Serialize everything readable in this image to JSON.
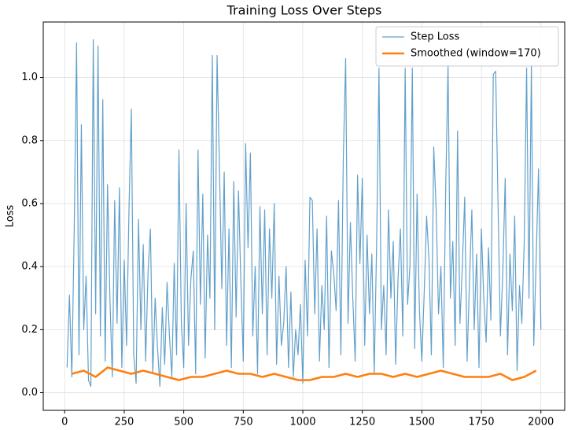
{
  "chart_data": {
    "type": "line",
    "title": "Training Loss Over Steps",
    "ylabel": "Loss",
    "xlim": [
      -90,
      2100
    ],
    "ylim": [
      -0.056,
      1.176
    ],
    "xticks": [
      0,
      250,
      500,
      750,
      1000,
      1250,
      1500,
      1750,
      2000
    ],
    "yticks": [
      {
        "value": 0,
        "label": "0.0"
      },
      0.2,
      0.4,
      0.6,
      0.8,
      {
        "value": 1,
        "label": "1.0"
      }
    ],
    "grid": true,
    "legend": "upper right",
    "series": [
      {
        "name": "Step Loss",
        "color": "#1f77b4",
        "x": [
          10,
          20,
          30,
          40,
          50,
          60,
          70,
          80,
          90,
          100,
          110,
          120,
          130,
          140,
          150,
          160,
          170,
          180,
          190,
          200,
          210,
          220,
          230,
          240,
          250,
          260,
          270,
          280,
          290,
          300,
          310,
          320,
          330,
          340,
          350,
          360,
          370,
          380,
          390,
          400,
          410,
          420,
          430,
          440,
          450,
          460,
          470,
          480,
          490,
          500,
          510,
          520,
          530,
          540,
          550,
          560,
          570,
          580,
          590,
          600,
          610,
          620,
          630,
          640,
          650,
          660,
          670,
          680,
          690,
          700,
          710,
          720,
          730,
          740,
          750,
          760,
          770,
          780,
          790,
          800,
          810,
          820,
          830,
          840,
          850,
          860,
          870,
          880,
          890,
          900,
          910,
          920,
          930,
          940,
          950,
          960,
          970,
          980,
          990,
          1000,
          1010,
          1020,
          1030,
          1040,
          1050,
          1060,
          1070,
          1080,
          1090,
          1100,
          1110,
          1120,
          1130,
          1140,
          1150,
          1160,
          1170,
          1180,
          1190,
          1200,
          1210,
          1220,
          1230,
          1240,
          1250,
          1260,
          1270,
          1280,
          1290,
          1300,
          1310,
          1320,
          1330,
          1340,
          1350,
          1360,
          1370,
          1380,
          1390,
          1400,
          1410,
          1420,
          1430,
          1440,
          1450,
          1460,
          1470,
          1480,
          1490,
          1500,
          1510,
          1520,
          1530,
          1540,
          1550,
          1560,
          1570,
          1580,
          1590,
          1600,
          1610,
          1620,
          1630,
          1640,
          1650,
          1660,
          1670,
          1680,
          1690,
          1700,
          1710,
          1720,
          1730,
          1740,
          1750,
          1760,
          1770,
          1780,
          1790,
          1800,
          1810,
          1820,
          1830,
          1840,
          1850,
          1860,
          1870,
          1880,
          1890,
          1900,
          1910,
          1920,
          1930,
          1940,
          1950,
          1960,
          1970,
          1980,
          1990,
          2000
        ],
        "values": [
          0.08,
          0.31,
          0.05,
          0.52,
          1.11,
          0.12,
          0.85,
          0.2,
          0.37,
          0.04,
          0.02,
          1.12,
          0.25,
          1.1,
          0.18,
          0.93,
          0.1,
          0.66,
          0.3,
          0.05,
          0.61,
          0.22,
          0.65,
          0.08,
          0.42,
          0.15,
          0.58,
          0.9,
          0.12,
          0.03,
          0.55,
          0.2,
          0.47,
          0.1,
          0.38,
          0.52,
          0.06,
          0.3,
          0.14,
          0.02,
          0.27,
          0.09,
          0.35,
          0.18,
          0.05,
          0.41,
          0.12,
          0.77,
          0.22,
          0.08,
          0.6,
          0.15,
          0.36,
          0.45,
          0.06,
          0.77,
          0.28,
          0.63,
          0.11,
          0.5,
          0.3,
          1.07,
          0.2,
          1.07,
          0.71,
          0.33,
          0.7,
          0.15,
          0.52,
          0.08,
          0.67,
          0.24,
          0.64,
          0.35,
          0.1,
          0.79,
          0.46,
          0.76,
          0.18,
          0.4,
          0.06,
          0.59,
          0.25,
          0.58,
          0.12,
          0.52,
          0.3,
          0.6,
          0.09,
          0.37,
          0.15,
          0.22,
          0.4,
          0.08,
          0.32,
          0.05,
          0.2,
          0.12,
          0.28,
          0.03,
          0.42,
          0.18,
          0.62,
          0.61,
          0.25,
          0.52,
          0.1,
          0.34,
          0.2,
          0.56,
          0.08,
          0.45,
          0.38,
          0.26,
          0.61,
          0.12,
          0.74,
          1.06,
          0.22,
          0.54,
          0.3,
          0.1,
          0.69,
          0.41,
          0.68,
          0.15,
          0.5,
          0.25,
          0.44,
          0.06,
          0.47,
          1.03,
          0.2,
          0.34,
          0.12,
          0.58,
          0.3,
          0.48,
          0.09,
          0.36,
          0.52,
          0.18,
          1.03,
          0.28,
          0.4,
          1.03,
          0.14,
          0.63,
          0.26,
          0.1,
          0.32,
          0.56,
          0.42,
          0.12,
          0.78,
          0.58,
          0.25,
          0.4,
          0.08,
          0.64,
          1.04,
          0.3,
          0.48,
          0.15,
          0.83,
          0.22,
          0.4,
          0.62,
          0.1,
          0.35,
          0.58,
          0.2,
          0.44,
          0.08,
          0.52,
          0.3,
          0.16,
          0.46,
          0.23,
          1.01,
          1.02,
          0.6,
          0.18,
          0.38,
          0.68,
          0.12,
          0.44,
          0.26,
          0.56,
          0.07,
          0.34,
          0.22,
          0.48,
          1.03,
          0.3,
          1.04,
          0.15,
          0.42,
          0.71,
          0.2
        ]
      },
      {
        "name": "Smoothed (window=170)",
        "color": "#ff7f0e",
        "x": [
          30,
          80,
          130,
          180,
          230,
          280,
          330,
          380,
          430,
          480,
          530,
          580,
          630,
          680,
          730,
          780,
          830,
          880,
          930,
          980,
          1030,
          1080,
          1130,
          1180,
          1230,
          1280,
          1330,
          1380,
          1430,
          1480,
          1530,
          1580,
          1630,
          1680,
          1730,
          1780,
          1830,
          1880,
          1930,
          1980
        ],
        "values": [
          0.06,
          0.07,
          0.05,
          0.08,
          0.07,
          0.06,
          0.07,
          0.06,
          0.05,
          0.04,
          0.05,
          0.05,
          0.06,
          0.07,
          0.06,
          0.06,
          0.05,
          0.06,
          0.05,
          0.04,
          0.04,
          0.05,
          0.05,
          0.06,
          0.05,
          0.06,
          0.06,
          0.05,
          0.06,
          0.05,
          0.06,
          0.07,
          0.06,
          0.05,
          0.05,
          0.05,
          0.06,
          0.04,
          0.05,
          0.07
        ]
      }
    ]
  }
}
